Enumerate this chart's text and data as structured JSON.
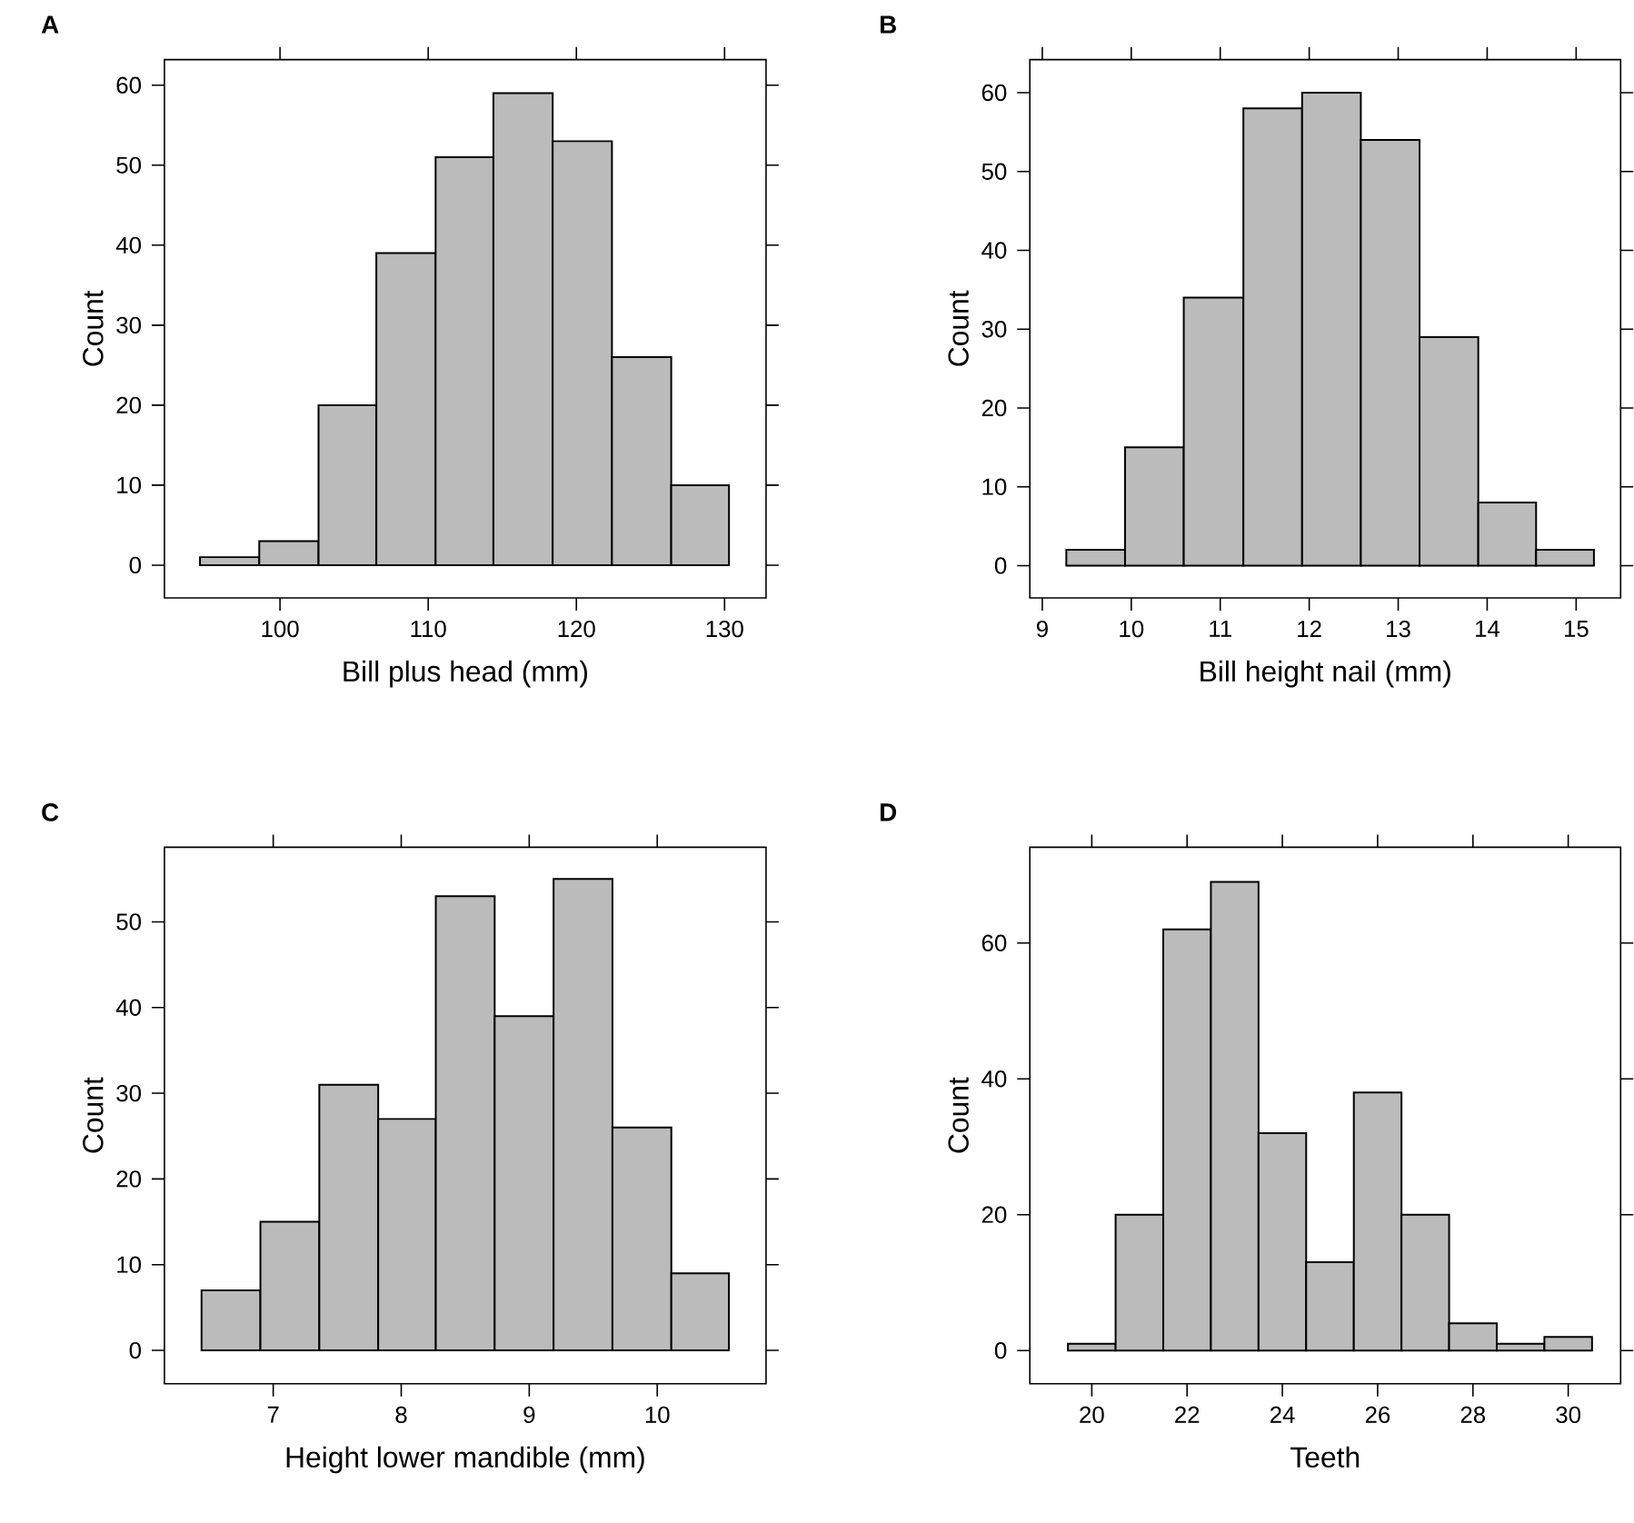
{
  "chart_data": [
    {
      "type": "histogram",
      "title": "A",
      "xlabel": "Bill plus head (mm)",
      "ylabel": "Count",
      "color": "#bbbbbb",
      "bins": [
        94.6,
        98.6,
        102.6,
        106.5,
        110.5,
        114.4,
        118.4,
        122.4,
        126.4,
        130.3
      ],
      "values": [
        1,
        3,
        20,
        39,
        51,
        59,
        53,
        26,
        10
      ],
      "xlim": [
        92.2,
        132.8
      ],
      "ylim": [
        -4.1,
        63.2
      ],
      "xticks": [
        100,
        110,
        120,
        130
      ],
      "yticks": [
        0,
        10,
        20,
        30,
        40,
        50,
        60
      ]
    },
    {
      "type": "histogram",
      "title": "B",
      "xlabel": "Bill height nail (mm)",
      "ylabel": "Count",
      "color": "#bbbbbb",
      "bins": [
        9.27,
        9.93,
        10.59,
        11.26,
        11.92,
        12.58,
        13.24,
        13.9,
        14.55,
        15.2
      ],
      "values": [
        2,
        15,
        34,
        58,
        60,
        54,
        29,
        8,
        2
      ],
      "xlim": [
        8.86,
        15.5
      ],
      "ylim": [
        -4.1,
        64.2
      ],
      "xticks": [
        9,
        10,
        11,
        12,
        13,
        14,
        15
      ],
      "yticks": [
        0,
        10,
        20,
        30,
        40,
        50,
        60
      ]
    },
    {
      "type": "histogram",
      "title": "C",
      "xlabel": "Height lower mandible (mm)",
      "ylabel": "Count",
      "color": "#bbbbbb",
      "bins": [
        6.44,
        6.9,
        7.36,
        7.82,
        8.27,
        8.73,
        9.19,
        9.65,
        10.11,
        10.56
      ],
      "values": [
        7,
        15,
        31,
        27,
        53,
        39,
        55,
        26,
        9
      ],
      "xlim": [
        6.15,
        10.85
      ],
      "ylim": [
        -3.9,
        58.7
      ],
      "xticks": [
        7,
        8,
        9,
        10
      ],
      "yticks": [
        0,
        10,
        20,
        30,
        40,
        50
      ]
    },
    {
      "type": "histogram",
      "title": "D",
      "xlabel": "Teeth",
      "ylabel": "Count",
      "color": "#bbbbbb",
      "bins": [
        19.5,
        20.5,
        21.5,
        22.5,
        23.5,
        24.5,
        25.5,
        26.5,
        27.5,
        28.5,
        29.5,
        30.5
      ],
      "values": [
        1,
        20,
        62,
        69,
        32,
        13,
        38,
        20,
        4,
        1,
        2
      ],
      "xlim": [
        18.7,
        31.1
      ],
      "ylim": [
        -4.9,
        74.1
      ],
      "xticks": [
        20,
        22,
        24,
        26,
        28,
        30
      ],
      "yticks": [
        0,
        20,
        40,
        60
      ]
    }
  ]
}
